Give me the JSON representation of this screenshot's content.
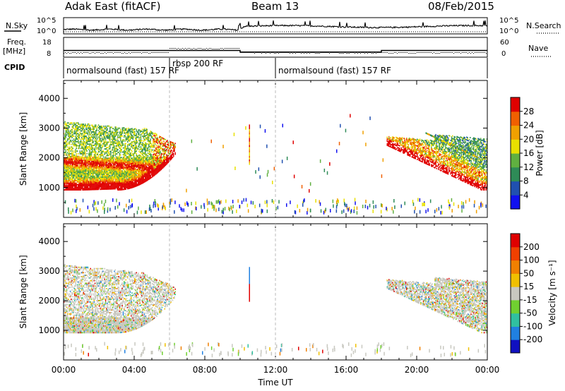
{
  "header": {
    "radar": "Adak East (fitACF)",
    "beam": "Beam 13",
    "date": "08/Feb/2015"
  },
  "colors": {
    "noise_sky": "#000000",
    "power_high": "#e00000",
    "power_mid": "#f0c000",
    "power_low": "#1010c0",
    "velocity_ground": "#c8c8c0",
    "velocity_positive": "#30a0f0",
    "velocity_negative": "#e02020"
  },
  "chart_data": [
    {
      "type": "line",
      "name": "noise-panel",
      "left_label": "N.Sky",
      "right_label": "N.Search",
      "left_ticks": [
        "10^5",
        "10^0"
      ],
      "right_ticks": [
        "10^5",
        "10^0"
      ],
      "x": [
        0,
        2,
        4,
        6,
        8,
        10,
        10.2,
        12,
        14,
        16,
        18,
        20,
        22,
        24
      ],
      "sky": [
        0.5,
        0.55,
        0.6,
        0.55,
        0.5,
        0.52,
        1.3,
        1.45,
        1.7,
        1.4,
        1.3,
        1.25,
        1.2,
        1.2
      ]
    },
    {
      "type": "line",
      "name": "frequency-panel",
      "left_label": "Freq. [MHz]",
      "right_label": "Nave",
      "left_ticks": [
        "18",
        "8"
      ],
      "right_ticks": [
        "60",
        "0"
      ],
      "freq_segments": [
        {
          "x": [
            0,
            10
          ],
          "y": 11.4
        },
        {
          "x": [
            10,
            18
          ],
          "y": 10.6
        },
        {
          "x": [
            18,
            24
          ],
          "y": 11.4
        }
      ]
    },
    {
      "type": "table",
      "name": "cpid-bar",
      "label": "CPID",
      "segments": [
        {
          "start": 0,
          "end": 6,
          "text": "normalsound (fast) 157 RF"
        },
        {
          "start": 6,
          "end": 12,
          "text": "rbsp 200 RF"
        },
        {
          "start": 12,
          "end": 24,
          "text": "normalsound (fast) 157 RF"
        }
      ]
    },
    {
      "type": "heatmap",
      "name": "power-panel",
      "xlabel": "",
      "ylabel": "Slant Range [km]",
      "xlim": [
        0,
        24
      ],
      "ylim": [
        0,
        4600
      ],
      "y_ticks": [
        "1000",
        "2000",
        "3000",
        "4000"
      ],
      "colorbar_label": "Power [dB]",
      "colorbar_ticks": [
        "4",
        "8",
        "12",
        "16",
        "20",
        "24",
        "28"
      ],
      "colorbar_colors": [
        "#1010f0",
        "#2050b0",
        "#2e8b57",
        "#60b040",
        "#e8e000",
        "#f0a000",
        "#f06000",
        "#e00000"
      ]
    },
    {
      "type": "heatmap",
      "name": "velocity-panel",
      "xlabel": "Time UT",
      "ylabel": "Slant Range [km]",
      "xlim": [
        0,
        24
      ],
      "ylim": [
        0,
        4600
      ],
      "y_ticks": [
        "1000",
        "2000",
        "3000",
        "4000"
      ],
      "x_ticks": [
        "00:00",
        "04:00",
        "08:00",
        "12:00",
        "16:00",
        "20:00",
        "00:00"
      ],
      "colorbar_label": "Velocity [m s⁻¹]",
      "colorbar_ticks": [
        "200",
        "100",
        "50",
        "15",
        "-15",
        "-50",
        "-100",
        "-200"
      ],
      "colorbar_colors": [
        "#1010c0",
        "#2080e0",
        "#30c0a0",
        "#70d030",
        "#c8c8c0",
        "#f0c000",
        "#f08000",
        "#f04000",
        "#e00000"
      ]
    }
  ]
}
